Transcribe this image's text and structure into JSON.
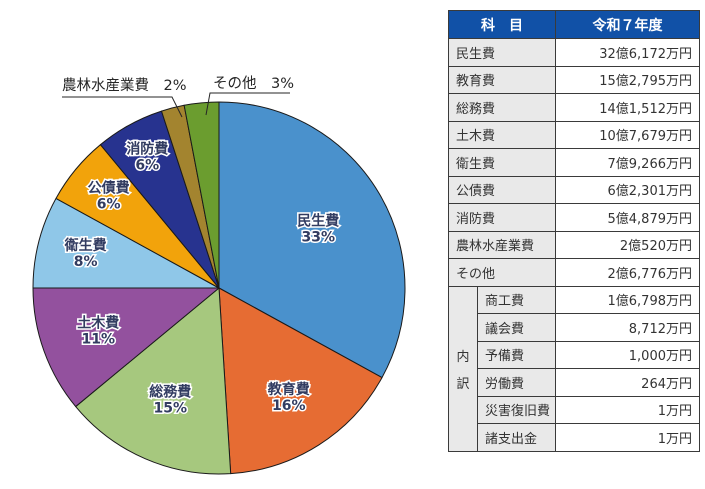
{
  "chart_data": {
    "type": "pie",
    "title": "",
    "direction": "clockwise",
    "start_angle_deg_from_top": 0,
    "categories": [
      "民生費",
      "教育費",
      "総務費",
      "土木費",
      "衛生費",
      "公債費",
      "消防費",
      "農林水産業費",
      "その他"
    ],
    "values": [
      33,
      16,
      15,
      11,
      8,
      6,
      6,
      2,
      3
    ],
    "unit": "%",
    "colors": [
      "#4A91CC",
      "#E66C33",
      "#A6C87E",
      "#93519E",
      "#8FC7E8",
      "#F2A30B",
      "#27338F",
      "#A3842F",
      "#6B9D2F"
    ],
    "slice_outline_color": "#1a1a1a",
    "inside_labels": [
      "民生費 33%",
      "教育費 16%",
      "総務費 15%",
      "土木費 11%",
      "衛生費 8%",
      "公債費 6%",
      "消防費 6%"
    ],
    "external_labels": [
      "農林水産業費　2%",
      "その他　3%"
    ],
    "legend_position": "none"
  },
  "table": {
    "headers": [
      "科　目",
      "令和７年度"
    ],
    "header_bg": "#1151A7",
    "rows": [
      {
        "category": "民生費",
        "value": "32億6,172万円"
      },
      {
        "category": "教育費",
        "value": "15億2,795万円"
      },
      {
        "category": "総務費",
        "value": "14億1,512万円"
      },
      {
        "category": "土木費",
        "value": "10億7,679万円"
      },
      {
        "category": "衛生費",
        "value": "7億9,266万円"
      },
      {
        "category": "公債費",
        "value": "6億2,301万円"
      },
      {
        "category": "消防費",
        "value": "5億4,879万円"
      },
      {
        "category": "農林水産業費",
        "value": "2億520万円"
      },
      {
        "category": "その他",
        "value": "2億6,776万円"
      }
    ],
    "breakdown_label_chars": [
      "内",
      "訳"
    ],
    "breakdown_rows": [
      {
        "category": "商工費",
        "value": "1億6,798万円"
      },
      {
        "category": "議会費",
        "value": "8,712万円"
      },
      {
        "category": "予備費",
        "value": "1,000万円"
      },
      {
        "category": "労働費",
        "value": "264万円"
      },
      {
        "category": "災害復旧費",
        "value": "1万円"
      },
      {
        "category": "諸支出金",
        "value": "1万円"
      }
    ]
  }
}
